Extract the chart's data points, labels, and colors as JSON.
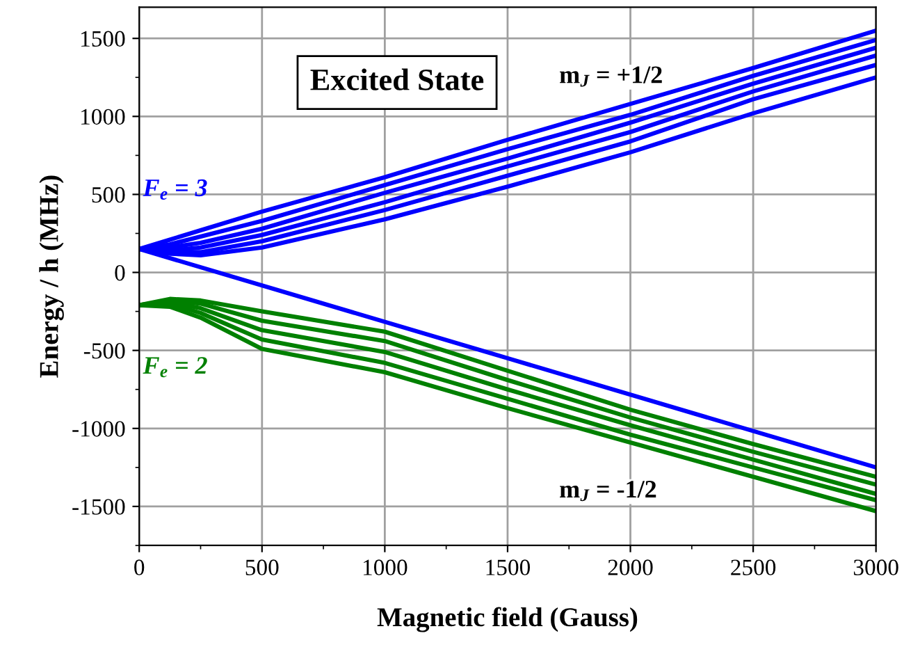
{
  "chart_data": {
    "type": "line",
    "title": "Excited State",
    "xlabel": "Magnetic field (Gauss)",
    "ylabel": "Energy / h (MHz)",
    "xlim": [
      0,
      3000
    ],
    "xticks": [
      0,
      500,
      1000,
      1500,
      2000,
      2500,
      3000
    ],
    "ylim": [
      -1750,
      1700
    ],
    "yticks": [
      -1500,
      -1000,
      -500,
      0,
      500,
      1000,
      1500
    ],
    "grid": true,
    "marker": "none",
    "line_style": "solid",
    "annotations": [
      "F$_{e}$ = 3",
      "F$_{e}$ = 2",
      "m$_{J}$ = +1/2",
      "m$_{J}$ = -1/2"
    ],
    "series": [
      {
        "color": "#0000ff",
        "x": [
          0,
          125,
          250,
          500,
          1000,
          1500,
          2000,
          2500,
          3000
        ],
        "values": [
          150,
          210,
          270,
          390,
          610,
          850,
          1080,
          1310,
          1550
        ]
      },
      {
        "color": "#0000ff",
        "x": [
          0,
          125,
          250,
          500,
          1000,
          1500,
          2000,
          2500,
          3000
        ],
        "values": [
          150,
          180,
          230,
          330,
          560,
          790,
          1010,
          1260,
          1490
        ]
      },
      {
        "color": "#0000ff",
        "x": [
          0,
          125,
          250,
          500,
          1000,
          1500,
          2000,
          2500,
          3000
        ],
        "values": [
          150,
          160,
          190,
          280,
          510,
          730,
          960,
          1210,
          1440
        ]
      },
      {
        "color": "#0000ff",
        "x": [
          0,
          125,
          250,
          500,
          1000,
          1500,
          2000,
          2500,
          3000
        ],
        "values": [
          150,
          140,
          160,
          240,
          450,
          680,
          900,
          1160,
          1390
        ]
      },
      {
        "color": "#0000ff",
        "x": [
          0,
          125,
          250,
          500,
          1000,
          1500,
          2000,
          2500,
          3000
        ],
        "values": [
          150,
          130,
          130,
          200,
          400,
          620,
          840,
          1110,
          1330
        ]
      },
      {
        "color": "#0000ff",
        "x": [
          0,
          125,
          250,
          500,
          1000,
          1500,
          2000,
          2500,
          3000
        ],
        "values": [
          150,
          120,
          110,
          160,
          340,
          550,
          770,
          1020,
          1250
        ]
      },
      {
        "color": "#0000ff",
        "x": [
          0,
          1500,
          3000
        ],
        "values": [
          150,
          -550,
          -1250
        ]
      },
      {
        "color": "#008000",
        "x": [
          0,
          125,
          250,
          500,
          1000,
          1500,
          2000,
          2500,
          3000
        ],
        "values": [
          -210,
          -170,
          -180,
          -250,
          -380,
          -630,
          -880,
          -1100,
          -1310
        ]
      },
      {
        "color": "#008000",
        "x": [
          0,
          125,
          250,
          500,
          1000,
          1500,
          2000,
          2500,
          3000
        ],
        "values": [
          -210,
          -180,
          -200,
          -310,
          -440,
          -690,
          -930,
          -1150,
          -1360
        ]
      },
      {
        "color": "#008000",
        "x": [
          0,
          125,
          250,
          500,
          1000,
          1500,
          2000,
          2500,
          3000
        ],
        "values": [
          -210,
          -190,
          -230,
          -370,
          -510,
          -750,
          -980,
          -1200,
          -1420
        ]
      },
      {
        "color": "#008000",
        "x": [
          0,
          125,
          250,
          500,
          1000,
          1500,
          2000,
          2500,
          3000
        ],
        "values": [
          -210,
          -200,
          -260,
          -430,
          -580,
          -810,
          -1040,
          -1250,
          -1460
        ]
      },
      {
        "color": "#008000",
        "x": [
          0,
          125,
          250,
          500,
          1000,
          1500,
          2000,
          2500,
          3000
        ],
        "values": [
          -210,
          -220,
          -290,
          -490,
          -640,
          -870,
          -1090,
          -1310,
          -1530
        ]
      }
    ]
  }
}
